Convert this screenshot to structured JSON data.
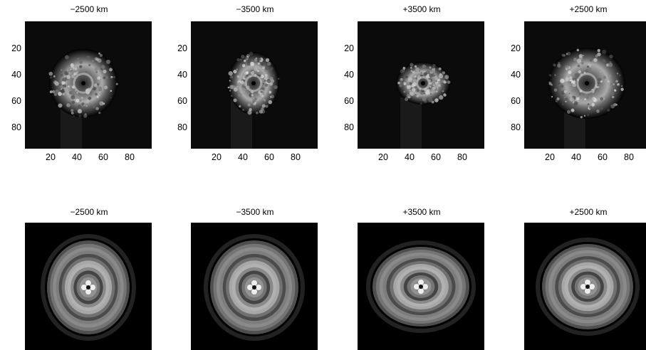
{
  "figure": {
    "rows": [
      {
        "kind": "measured",
        "panels": [
          {
            "title": "−2500 km"
          },
          {
            "title": "−3500 km"
          },
          {
            "title": "+3500 km"
          },
          {
            "title": "+2500 km"
          }
        ]
      },
      {
        "kind": "model",
        "panels": [
          {
            "title": "−2500 km"
          },
          {
            "title": "−3500 km"
          },
          {
            "title": "+3500 km"
          },
          {
            "title": "+2500 km"
          }
        ]
      }
    ],
    "y_ticks": [
      "20",
      "40",
      "60",
      "80"
    ],
    "x_ticks": [
      "20",
      "40",
      "60",
      "80"
    ],
    "colormap": {
      "low": "#000000",
      "high": "#ffffff"
    }
  }
}
